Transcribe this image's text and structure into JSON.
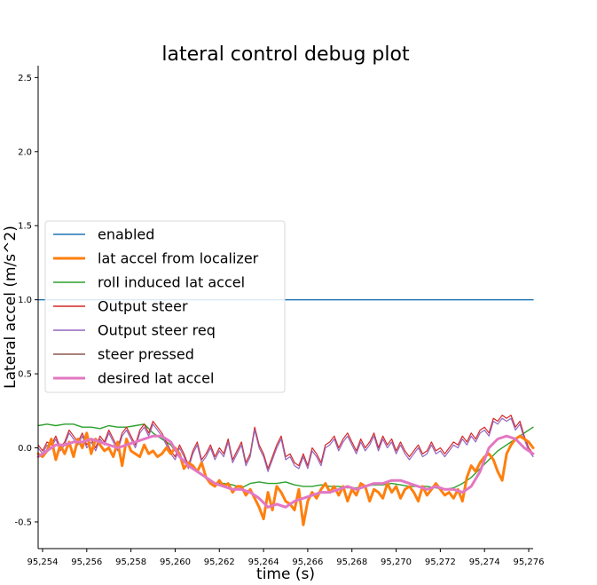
{
  "chart_data": {
    "type": "line",
    "title": "lateral control debug plot",
    "xlabel": "time (s)",
    "ylabel": "Lateral accel (m/s^2)",
    "xlim": [
      95253.8,
      95276.2
    ],
    "ylim": [
      -0.68,
      2.58
    ],
    "x_ticks": [
      95254,
      95256,
      95258,
      95260,
      95262,
      95264,
      95266,
      95268,
      95270,
      95272,
      95274,
      95276
    ],
    "x_tick_labels": [
      "95,254",
      "95,256",
      "95,258",
      "95,260",
      "95,262",
      "95,264",
      "95,266",
      "95,268",
      "95,270",
      "95,272",
      "95,274",
      "95,276"
    ],
    "y_ticks": [
      -0.5,
      0.0,
      0.5,
      1.0,
      1.5,
      2.0,
      2.5
    ],
    "y_tick_labels": [
      "-0.5",
      "0.0",
      "0.5",
      "1.0",
      "1.5",
      "2.0",
      "2.5"
    ],
    "legend_position": "upper-left",
    "series": [
      {
        "name": "enabled",
        "color": "#1f77b4",
        "x": [
          95253.8,
          95276.2
        ],
        "y": [
          1.0,
          1.0
        ]
      },
      {
        "name": "lat accel from localizer",
        "color": "#ff7f0e",
        "x": [
          95253.8,
          95254.0,
          95254.2,
          95254.4,
          95254.6,
          95254.8,
          95255.0,
          95255.2,
          95255.4,
          95255.6,
          95255.8,
          95256.0,
          95256.2,
          95256.4,
          95256.6,
          95256.8,
          95257.0,
          95257.2,
          95257.4,
          95257.6,
          95257.8,
          95258.0,
          95258.2,
          95258.4,
          95258.6,
          95258.8,
          95259.0,
          95259.2,
          95259.4,
          95259.6,
          95259.8,
          95260.0,
          95260.2,
          95260.4,
          95260.6,
          95260.8,
          95261.0,
          95261.2,
          95261.4,
          95261.6,
          95261.8,
          95262.0,
          95262.2,
          95262.4,
          95262.6,
          95262.8,
          95263.0,
          95263.2,
          95263.4,
          95263.6,
          95263.8,
          95264.0,
          95264.2,
          95264.4,
          95264.6,
          95264.8,
          95265.0,
          95265.2,
          95265.4,
          95265.6,
          95265.8,
          95266.0,
          95266.2,
          95266.4,
          95266.6,
          95266.8,
          95267.0,
          95267.2,
          95267.4,
          95267.6,
          95267.8,
          95268.0,
          95268.2,
          95268.4,
          95268.6,
          95268.8,
          95269.0,
          95269.2,
          95269.4,
          95269.6,
          95269.8,
          95270.0,
          95270.2,
          95270.4,
          95270.6,
          95270.8,
          95271.0,
          95271.2,
          95271.4,
          95271.6,
          95271.8,
          95272.0,
          95272.2,
          95272.4,
          95272.6,
          95272.8,
          95273.0,
          95273.2,
          95273.4,
          95273.6,
          95273.8,
          95274.0,
          95274.2,
          95274.4,
          95274.6,
          95274.8,
          95275.0,
          95275.2,
          95275.4,
          95275.6,
          95275.8,
          95276.0,
          95276.2
        ],
        "y": [
          -0.04,
          -0.06,
          -0.02,
          0.06,
          -0.08,
          0.02,
          -0.04,
          0.04,
          -0.06,
          0.06,
          0.0,
          0.1,
          -0.04,
          0.06,
          0.02,
          -0.02,
          0.0,
          -0.06,
          0.04,
          -0.12,
          0.06,
          -0.02,
          -0.04,
          -0.06,
          0.02,
          -0.04,
          -0.02,
          -0.06,
          -0.04,
          0.0,
          -0.04,
          0.0,
          -0.04,
          -0.14,
          -0.1,
          -0.12,
          -0.16,
          -0.1,
          -0.2,
          -0.24,
          -0.26,
          -0.22,
          -0.26,
          -0.24,
          -0.3,
          -0.26,
          -0.26,
          -0.32,
          -0.28,
          -0.34,
          -0.4,
          -0.48,
          -0.3,
          -0.42,
          -0.26,
          -0.3,
          -0.36,
          -0.38,
          -0.42,
          -0.28,
          -0.52,
          -0.36,
          -0.3,
          -0.34,
          -0.28,
          -0.24,
          -0.3,
          -0.26,
          -0.32,
          -0.26,
          -0.36,
          -0.28,
          -0.32,
          -0.24,
          -0.26,
          -0.36,
          -0.28,
          -0.3,
          -0.34,
          -0.24,
          -0.3,
          -0.26,
          -0.34,
          -0.28,
          -0.26,
          -0.3,
          -0.36,
          -0.26,
          -0.32,
          -0.28,
          -0.24,
          -0.28,
          -0.32,
          -0.3,
          -0.34,
          -0.28,
          -0.36,
          -0.2,
          -0.12,
          -0.16,
          -0.1,
          -0.06,
          -0.04,
          -0.08,
          -0.16,
          -0.22,
          -0.04,
          0.02,
          0.06,
          0.08,
          0.06,
          0.04,
          0.0
        ],
        "width": 3
      },
      {
        "name": "roll induced lat accel",
        "color": "#2ca02c",
        "x": [
          95253.8,
          95254.2,
          95254.6,
          95255.0,
          95255.4,
          95255.8,
          95256.2,
          95256.6,
          95257.0,
          95257.4,
          95257.8,
          95258.2,
          95258.6,
          95259.0,
          95259.4,
          95259.8,
          95260.2,
          95260.6,
          95261.0,
          95261.4,
          95261.8,
          95262.2,
          95262.6,
          95263.0,
          95263.4,
          95263.8,
          95264.2,
          95264.6,
          95265.0,
          95265.4,
          95265.8,
          95266.2,
          95266.6,
          95267.0,
          95267.4,
          95267.8,
          95268.2,
          95268.6,
          95269.0,
          95269.4,
          95269.8,
          95270.2,
          95270.6,
          95271.0,
          95271.4,
          95271.8,
          95272.2,
          95272.6,
          95273.0,
          95273.4,
          95273.8,
          95274.2,
          95274.6,
          95275.0,
          95275.4,
          95275.8,
          95276.2
        ],
        "y": [
          0.15,
          0.16,
          0.15,
          0.16,
          0.16,
          0.14,
          0.14,
          0.13,
          0.15,
          0.14,
          0.14,
          0.15,
          0.16,
          0.1,
          0.06,
          0.02,
          -0.06,
          -0.11,
          -0.16,
          -0.2,
          -0.24,
          -0.24,
          -0.25,
          -0.27,
          -0.24,
          -0.23,
          -0.24,
          -0.24,
          -0.23,
          -0.25,
          -0.26,
          -0.26,
          -0.25,
          -0.26,
          -0.26,
          -0.27,
          -0.27,
          -0.26,
          -0.25,
          -0.25,
          -0.24,
          -0.25,
          -0.26,
          -0.26,
          -0.26,
          -0.27,
          -0.28,
          -0.27,
          -0.24,
          -0.2,
          -0.14,
          -0.08,
          -0.02,
          0.02,
          0.06,
          0.1,
          0.14
        ]
      },
      {
        "name": "Output steer",
        "color": "#d62728",
        "x": [
          95253.8,
          95254.0,
          95254.2,
          95254.4,
          95254.6,
          95254.8,
          95255.0,
          95255.2,
          95255.4,
          95255.6,
          95255.8,
          95256.0,
          95256.2,
          95256.4,
          95256.6,
          95256.8,
          95257.0,
          95257.2,
          95257.4,
          95257.6,
          95257.8,
          95258.0,
          95258.2,
          95258.4,
          95258.6,
          95258.8,
          95259.0,
          95259.2,
          95259.4,
          95259.6,
          95259.8,
          95260.0,
          95260.2,
          95260.4,
          95260.6,
          95260.8,
          95261.0,
          95261.2,
          95261.4,
          95261.6,
          95261.8,
          95262.0,
          95262.2,
          95262.4,
          95262.6,
          95262.8,
          95263.0,
          95263.2,
          95263.4,
          95263.6,
          95263.8,
          95264.0,
          95264.2,
          95264.4,
          95264.6,
          95264.8,
          95265.0,
          95265.2,
          95265.4,
          95265.6,
          95265.8,
          95266.0,
          95266.2,
          95266.4,
          95266.6,
          95266.8,
          95267.0,
          95267.2,
          95267.4,
          95267.6,
          95267.8,
          95268.0,
          95268.2,
          95268.4,
          95268.6,
          95268.8,
          95269.0,
          95269.2,
          95269.4,
          95269.6,
          95269.8,
          95270.0,
          95270.2,
          95270.4,
          95270.6,
          95270.8,
          95271.0,
          95271.2,
          95271.4,
          95271.6,
          95271.8,
          95272.0,
          95272.2,
          95272.4,
          95272.6,
          95272.8,
          95273.0,
          95273.2,
          95273.4,
          95273.6,
          95273.8,
          95274.0,
          95274.2,
          95274.4,
          95274.6,
          95274.8,
          95275.0,
          95275.2,
          95275.4,
          95275.6,
          95275.8,
          95276.0,
          95276.2
        ],
        "y": [
          0.02,
          -0.02,
          0.04,
          0.02,
          0.08,
          0.0,
          0.04,
          0.12,
          0.08,
          0.04,
          0.1,
          0.02,
          0.06,
          0.0,
          0.08,
          0.04,
          0.12,
          0.06,
          0.0,
          0.1,
          0.14,
          0.08,
          0.02,
          0.12,
          0.16,
          0.1,
          0.18,
          0.14,
          0.1,
          0.04,
          -0.02,
          -0.06,
          0.02,
          -0.04,
          -0.12,
          -0.02,
          0.04,
          -0.08,
          -0.04,
          0.02,
          -0.06,
          0.0,
          -0.04,
          0.06,
          -0.08,
          -0.02,
          0.04,
          -0.1,
          -0.04,
          0.14,
          0.02,
          -0.04,
          -0.14,
          -0.06,
          0.02,
          0.08,
          -0.06,
          -0.04,
          -0.1,
          -0.12,
          -0.04,
          -0.12,
          0.0,
          -0.04,
          -0.1,
          0.02,
          0.04,
          0.08,
          0.0,
          0.06,
          0.1,
          0.04,
          -0.02,
          0.06,
          0.0,
          0.04,
          0.1,
          0.0,
          0.08,
          0.02,
          0.06,
          -0.02,
          0.04,
          -0.02,
          -0.06,
          -0.02,
          0.02,
          -0.04,
          -0.02,
          0.04,
          -0.02,
          0.0,
          -0.04,
          0.0,
          0.04,
          0.02,
          0.08,
          0.04,
          0.1,
          0.06,
          0.12,
          0.14,
          0.1,
          0.2,
          0.18,
          0.22,
          0.2,
          0.22,
          0.14,
          0.18,
          0.08,
          0.0,
          -0.04
        ],
        "width": 1.2
      },
      {
        "name": "Output steer req",
        "color": "#9467bd",
        "x": [
          95253.8,
          95254.0,
          95254.2,
          95254.4,
          95254.6,
          95254.8,
          95255.0,
          95255.2,
          95255.4,
          95255.6,
          95255.8,
          95256.0,
          95256.2,
          95256.4,
          95256.6,
          95256.8,
          95257.0,
          95257.2,
          95257.4,
          95257.6,
          95257.8,
          95258.0,
          95258.2,
          95258.4,
          95258.6,
          95258.8,
          95259.0,
          95259.2,
          95259.4,
          95259.6,
          95259.8,
          95260.0,
          95260.2,
          95260.4,
          95260.6,
          95260.8,
          95261.0,
          95261.2,
          95261.4,
          95261.6,
          95261.8,
          95262.0,
          95262.2,
          95262.4,
          95262.6,
          95262.8,
          95263.0,
          95263.2,
          95263.4,
          95263.6,
          95263.8,
          95264.0,
          95264.2,
          95264.4,
          95264.6,
          95264.8,
          95265.0,
          95265.2,
          95265.4,
          95265.6,
          95265.8,
          95266.0,
          95266.2,
          95266.4,
          95266.6,
          95266.8,
          95267.0,
          95267.2,
          95267.4,
          95267.6,
          95267.8,
          95268.0,
          95268.2,
          95268.4,
          95268.6,
          95268.8,
          95269.0,
          95269.2,
          95269.4,
          95269.6,
          95269.8,
          95270.0,
          95270.2,
          95270.4,
          95270.6,
          95270.8,
          95271.0,
          95271.2,
          95271.4,
          95271.6,
          95271.8,
          95272.0,
          95272.2,
          95272.4,
          95272.6,
          95272.8,
          95273.0,
          95273.2,
          95273.4,
          95273.6,
          95273.8,
          95274.0,
          95274.2,
          95274.4,
          95274.6,
          95274.8,
          95275.0,
          95275.2,
          95275.4,
          95275.6,
          95275.8,
          95276.0,
          95276.2
        ],
        "y": [
          0.0,
          -0.04,
          0.02,
          0.0,
          0.06,
          -0.02,
          0.02,
          0.1,
          0.06,
          0.02,
          0.08,
          0.0,
          0.04,
          -0.02,
          0.06,
          0.02,
          0.1,
          0.04,
          -0.02,
          0.08,
          0.12,
          0.06,
          0.0,
          0.1,
          0.14,
          0.08,
          0.16,
          0.12,
          0.08,
          0.02,
          -0.04,
          -0.08,
          0.0,
          -0.06,
          -0.14,
          -0.04,
          0.02,
          -0.1,
          -0.06,
          0.0,
          -0.08,
          -0.02,
          -0.06,
          0.04,
          -0.1,
          -0.04,
          0.02,
          -0.12,
          -0.06,
          0.12,
          0.0,
          -0.06,
          -0.16,
          -0.08,
          0.0,
          0.06,
          -0.08,
          -0.06,
          -0.12,
          -0.14,
          -0.06,
          -0.14,
          -0.02,
          -0.06,
          -0.12,
          0.0,
          0.02,
          0.06,
          -0.02,
          0.04,
          0.08,
          0.02,
          -0.04,
          0.04,
          -0.02,
          0.02,
          0.08,
          -0.02,
          0.06,
          0.0,
          0.04,
          -0.04,
          0.02,
          -0.04,
          -0.08,
          -0.04,
          0.0,
          -0.06,
          -0.04,
          0.02,
          -0.04,
          -0.02,
          -0.06,
          -0.02,
          0.02,
          0.0,
          0.06,
          0.02,
          0.08,
          0.04,
          0.1,
          0.12,
          0.08,
          0.18,
          0.16,
          0.2,
          0.18,
          0.2,
          0.12,
          0.16,
          0.06,
          -0.02,
          -0.06
        ],
        "width": 1.2
      },
      {
        "name": "steer pressed",
        "color": "#8c564b",
        "x": [],
        "y": []
      },
      {
        "name": "desired lat accel",
        "color": "#e377c2",
        "x": [
          95253.8,
          95254.2,
          95254.6,
          95255.0,
          95255.4,
          95255.8,
          95256.2,
          95256.6,
          95257.0,
          95257.4,
          95257.8,
          95258.2,
          95258.6,
          95259.0,
          95259.4,
          95259.8,
          95260.2,
          95260.6,
          95261.0,
          95261.4,
          95261.8,
          95262.2,
          95262.6,
          95263.0,
          95263.4,
          95263.8,
          95264.2,
          95264.6,
          95265.0,
          95265.4,
          95265.8,
          95266.2,
          95266.6,
          95267.0,
          95267.4,
          95267.8,
          95268.2,
          95268.6,
          95269.0,
          95269.4,
          95269.8,
          95270.2,
          95270.6,
          95271.0,
          95271.4,
          95271.8,
          95272.2,
          95272.6,
          95273.0,
          95273.4,
          95273.8,
          95274.2,
          95274.6,
          95275.0,
          95275.4,
          95275.8,
          95276.2
        ],
        "y": [
          -0.06,
          -0.02,
          0.02,
          0.02,
          0.04,
          0.04,
          0.06,
          0.04,
          0.02,
          0.0,
          0.02,
          0.04,
          0.06,
          0.08,
          0.08,
          0.04,
          -0.06,
          -0.12,
          -0.16,
          -0.2,
          -0.24,
          -0.26,
          -0.28,
          -0.28,
          -0.3,
          -0.34,
          -0.4,
          -0.38,
          -0.4,
          -0.36,
          -0.34,
          -0.32,
          -0.3,
          -0.3,
          -0.28,
          -0.26,
          -0.28,
          -0.26,
          -0.24,
          -0.24,
          -0.22,
          -0.22,
          -0.24,
          -0.26,
          -0.28,
          -0.26,
          -0.28,
          -0.28,
          -0.3,
          -0.26,
          -0.16,
          0.0,
          0.06,
          0.08,
          0.06,
          0.0,
          -0.04
        ],
        "width": 3
      }
    ]
  }
}
